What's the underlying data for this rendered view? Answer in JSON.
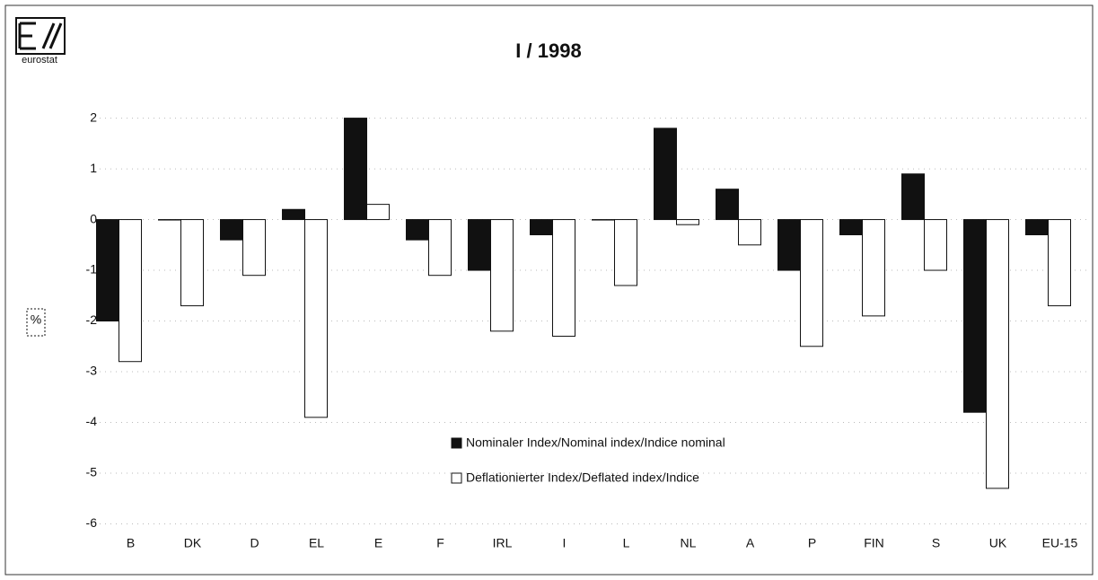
{
  "logo": "eurostat",
  "chart_data": {
    "type": "bar",
    "title": "I / 1998",
    "ylabel": "%",
    "categories": [
      "B",
      "DK",
      "D",
      "EL",
      "E",
      "F",
      "IRL",
      "I",
      "L",
      "NL",
      "A",
      "P",
      "FIN",
      "S",
      "UK",
      "EU-15"
    ],
    "series": [
      {
        "name": "Nominaler Index/Nominal index/Indice nominal",
        "color": "#111111",
        "values": [
          -2.0,
          0,
          -0.4,
          0.2,
          2.0,
          -0.4,
          -1.0,
          -0.3,
          0,
          1.8,
          0.6,
          -1.0,
          -0.3,
          0.9,
          -3.8,
          -0.3
        ]
      },
      {
        "name": "Deflationierter Index/Deflated index/Indice",
        "color": "#ffffff",
        "values": [
          -2.8,
          -1.7,
          -1.1,
          -3.9,
          0.3,
          -1.1,
          -2.2,
          -2.3,
          -1.3,
          -0.1,
          -0.5,
          -2.5,
          -1.9,
          -1.0,
          -5.3,
          -1.7
        ]
      }
    ],
    "ylim": [
      -6.7,
      2.4
    ],
    "yticks": [
      -6,
      -5,
      -4,
      -3,
      -2,
      -1,
      0,
      1,
      2
    ],
    "grid": true
  }
}
